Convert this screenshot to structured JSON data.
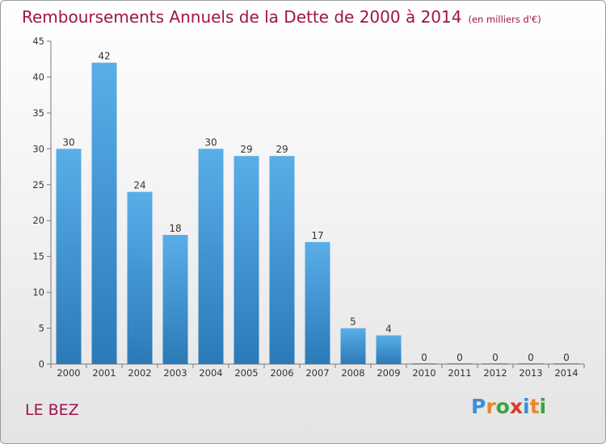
{
  "title": "Remboursements Annuels de la Dette de 2000 à 2014",
  "unit": "(en milliers d'€)",
  "commune": "LE BEZ",
  "logo": {
    "text": "Proxiti",
    "letters": [
      {
        "ch": "P",
        "color": "#3c8fd6"
      },
      {
        "ch": "r",
        "color": "#e8862a"
      },
      {
        "ch": "o",
        "color": "#3aa53a"
      },
      {
        "ch": "x",
        "color": "#d43b2a"
      },
      {
        "ch": "i",
        "color": "#3c8fd6"
      },
      {
        "ch": "t",
        "color": "#e8862a"
      },
      {
        "ch": "i",
        "color": "#3aa53a"
      }
    ]
  },
  "chart_data": {
    "type": "bar",
    "title": "Remboursements Annuels de la Dette de 2000 à 2014",
    "unit": "(en milliers d'€)",
    "categories": [
      "2000",
      "2001",
      "2002",
      "2003",
      "2004",
      "2005",
      "2006",
      "2007",
      "2008",
      "2009",
      "2010",
      "2011",
      "2012",
      "2013",
      "2014"
    ],
    "values": [
      30,
      42,
      24,
      18,
      30,
      29,
      29,
      17,
      5,
      4,
      0,
      0,
      0,
      0,
      0
    ],
    "ylim": [
      0,
      45
    ],
    "yticks": [
      0,
      5,
      10,
      15,
      20,
      25,
      30,
      35,
      40,
      45
    ],
    "grid": false,
    "bar_color_top": "#5aaee8",
    "bar_color_bottom": "#2a7ab8"
  }
}
